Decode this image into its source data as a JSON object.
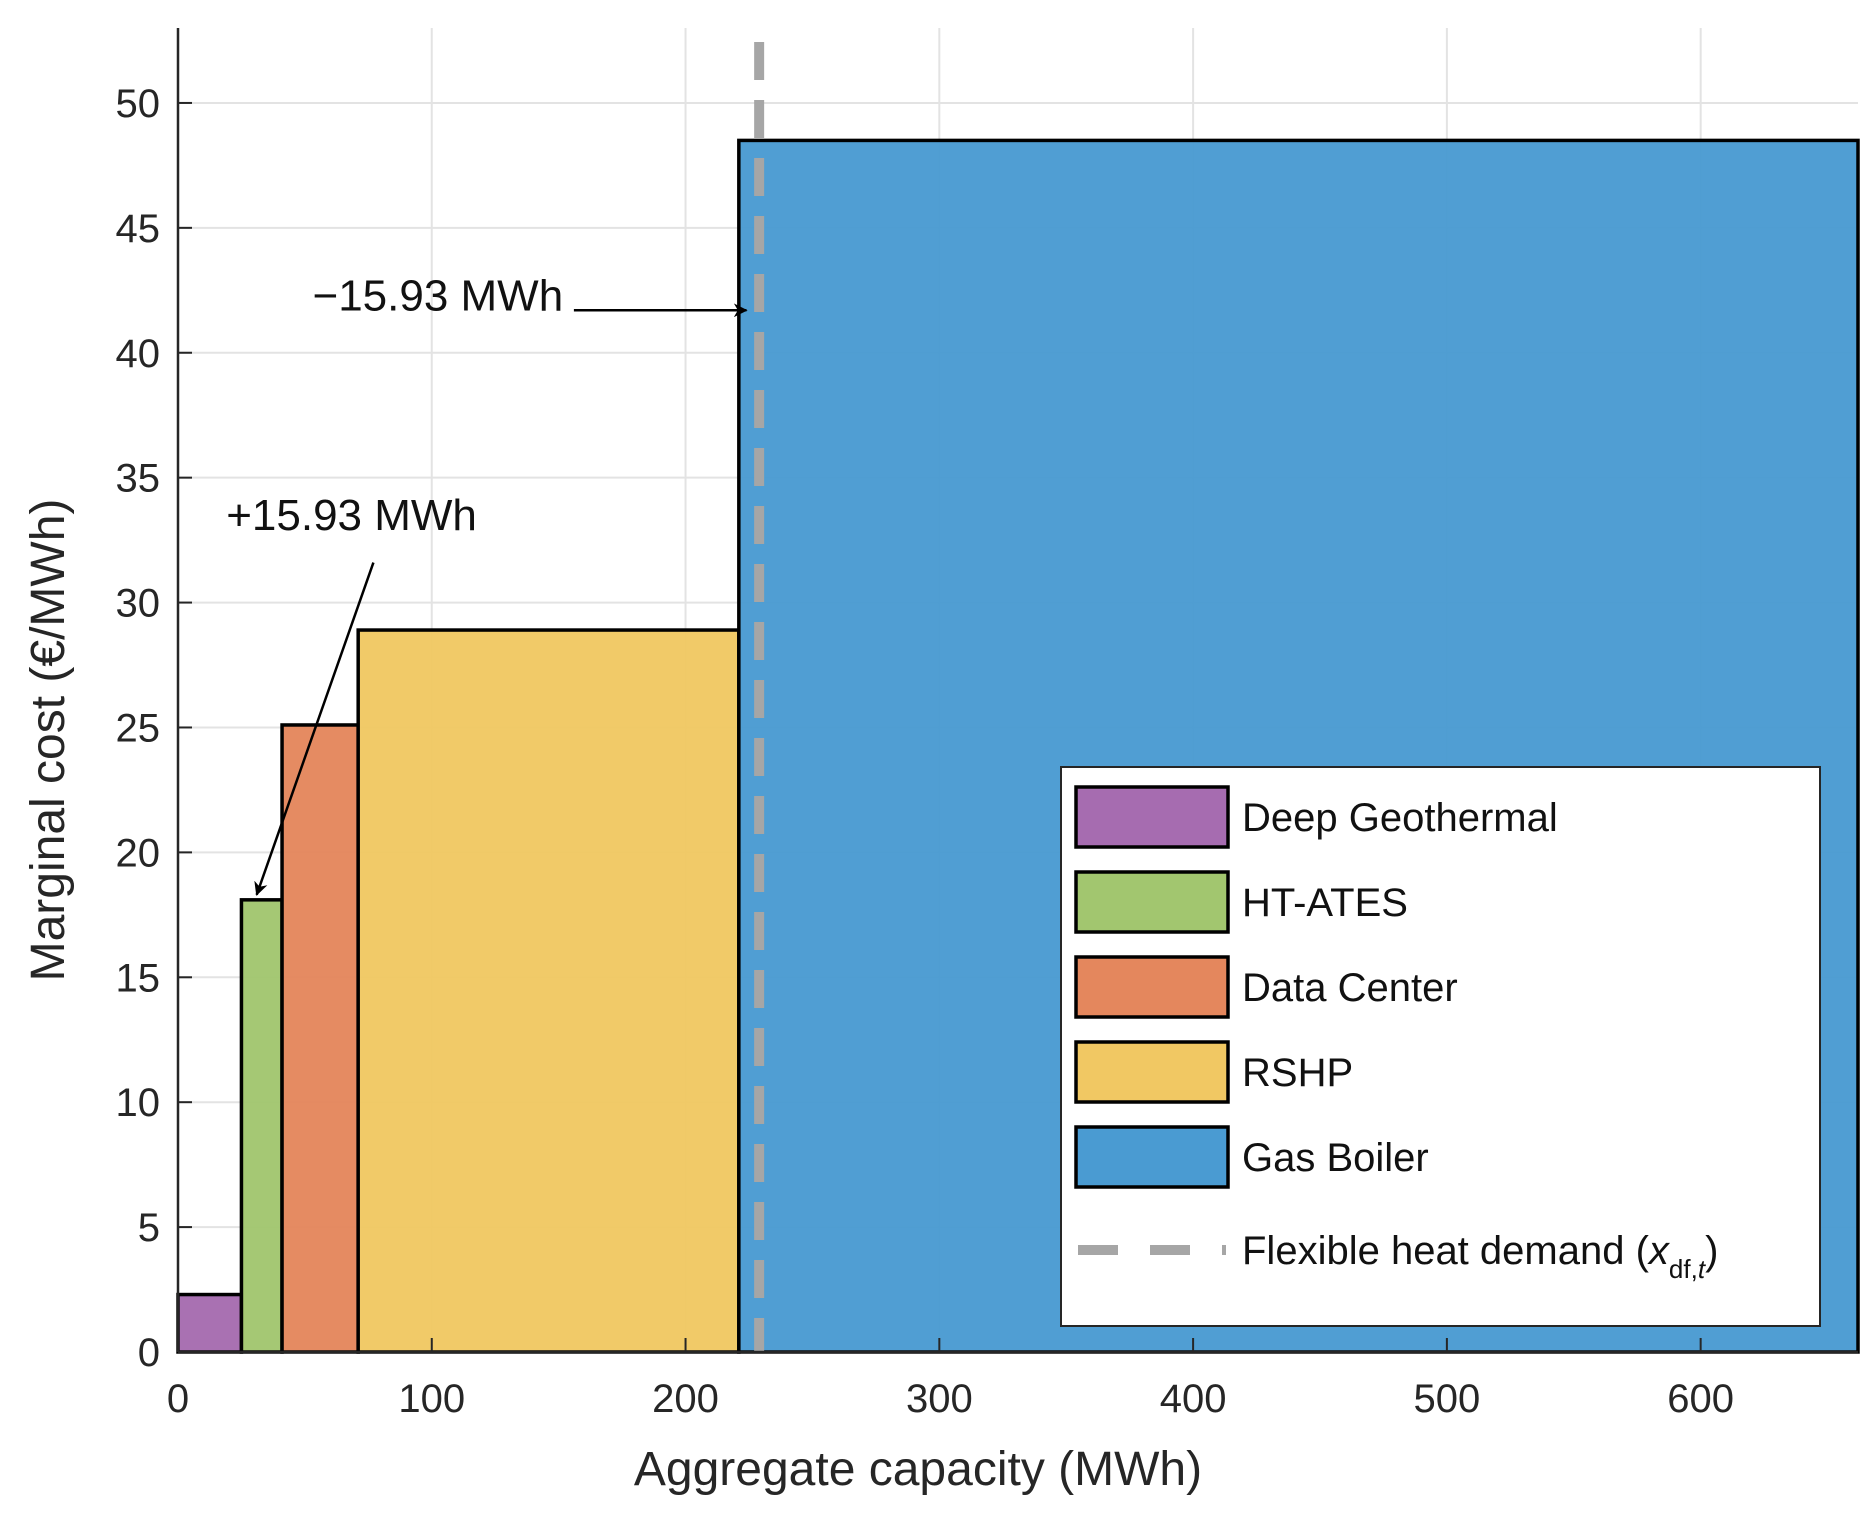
{
  "chart_data": {
    "type": "bar",
    "subtype": "merit-order-step",
    "title": "",
    "xlabel": "Aggregate capacity (MWh)",
    "ylabel": "Marginal cost (€/MWh)",
    "xlim": [
      0,
      662
    ],
    "ylim": [
      0,
      53
    ],
    "xticks": [
      0,
      100,
      200,
      300,
      400,
      500,
      600
    ],
    "yticks": [
      0,
      5,
      10,
      15,
      20,
      25,
      30,
      35,
      40,
      45,
      50
    ],
    "grid": true,
    "legend_position": "bottom-right",
    "series": [
      {
        "name": "Deep Geothermal",
        "x_start": 0,
        "x_end": 25,
        "value": 2.3,
        "color": "#a66cb0"
      },
      {
        "name": "HT-ATES",
        "x_start": 25,
        "x_end": 41,
        "value": 18.1,
        "color": "#a2c66f"
      },
      {
        "name": "Data Center",
        "x_start": 41,
        "x_end": 71,
        "value": 25.1,
        "color": "#e4875d"
      },
      {
        "name": "RSHP",
        "x_start": 71,
        "x_end": 221,
        "value": 28.9,
        "color": "#f1c863"
      },
      {
        "name": "Gas Boiler",
        "x_start": 221,
        "x_end": 662,
        "value": 48.5,
        "color": "#4a9bd2"
      }
    ],
    "demand_line": {
      "name": "Flexible heat demand",
      "x": 229,
      "color": "#a6a6a6"
    },
    "annotations": [
      {
        "id": "minus",
        "text": "−15.93 MWh",
        "text_at": [
          53,
          41.7
        ],
        "arrow_from": [
          156,
          41.7
        ],
        "arrow_to": [
          224,
          41.7
        ]
      },
      {
        "id": "plus",
        "text": "+15.93 MWh",
        "text_at": [
          19,
          32.9
        ],
        "arrow_from": [
          77,
          31.6
        ],
        "arrow_to": [
          31,
          18.3
        ]
      }
    ]
  },
  "legend": {
    "demand_label_prefix": "Flexible heat demand (",
    "demand_label_var": "x",
    "demand_label_sub": "df,",
    "demand_label_sub_italic": "t",
    "demand_label_suffix": ")"
  }
}
